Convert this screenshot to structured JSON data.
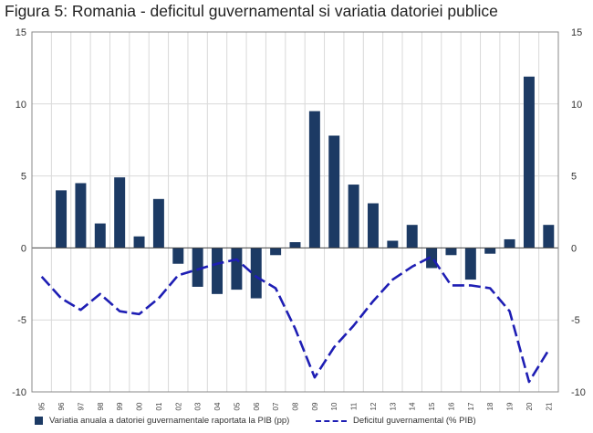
{
  "title": "Figura 5: Romania - deficitul guvernamental si variatia datoriei publice",
  "colors": {
    "bar": "#1c3a64",
    "line": "#1e1eb4",
    "grid": "#d9d9d9",
    "axis": "#888888"
  },
  "chart_data": {
    "type": "bar",
    "title": "Figura 5: Romania - deficitul guvernamental si variatia datoriei publice",
    "categories": [
      "95",
      "96",
      "97",
      "98",
      "99",
      "00",
      "01",
      "02",
      "03",
      "04",
      "05",
      "06",
      "07",
      "08",
      "09",
      "10",
      "11",
      "12",
      "13",
      "14",
      "15",
      "16",
      "17",
      "18",
      "19",
      "20",
      "21"
    ],
    "ylim": [
      -10,
      15
    ],
    "yticks": [
      15,
      10,
      5,
      0,
      -5,
      -10
    ],
    "grid": true,
    "legend_position": "bottom",
    "series": [
      {
        "name": "Variatia anuala a datoriei guvernamentale raportata la PIB (pp)",
        "type": "bar",
        "values": [
          null,
          4.0,
          4.5,
          1.7,
          4.9,
          0.8,
          3.4,
          -1.1,
          -2.7,
          -3.2,
          -2.9,
          -3.5,
          -0.5,
          0.4,
          9.5,
          7.8,
          4.4,
          3.1,
          0.5,
          1.6,
          -1.4,
          -0.5,
          -2.2,
          -0.4,
          0.6,
          11.9,
          1.6
        ]
      },
      {
        "name": "Deficitul guvernamental (% PIB)",
        "type": "line",
        "style": "dashed",
        "values": [
          -2.0,
          -3.5,
          -4.3,
          -3.2,
          -4.4,
          -4.6,
          -3.5,
          -1.9,
          -1.5,
          -1.1,
          -0.8,
          -2.0,
          -2.8,
          -5.6,
          -9.0,
          -6.9,
          -5.4,
          -3.7,
          -2.2,
          -1.3,
          -0.6,
          -2.6,
          -2.6,
          -2.8,
          -4.4,
          -9.3,
          -7.1
        ]
      }
    ]
  }
}
